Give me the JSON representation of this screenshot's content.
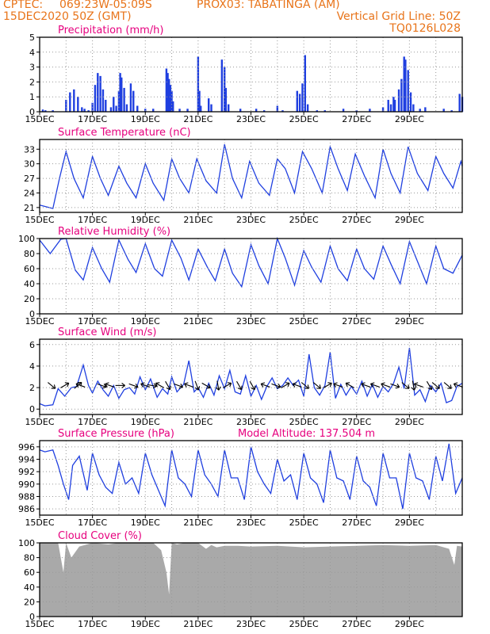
{
  "header": {
    "line1_left": "CPTEC:",
    "coords": "069:23W-05:09S",
    "station": "PROX03: TABATINGA (AM)",
    "datetime": "15DEC2020 50Z (GMT)",
    "grid_note": "Vertical Grid Line: 50Z",
    "run_id": "TQ0126L028"
  },
  "colors": {
    "header": "#e8741a",
    "title": "#e6007e",
    "line": "#1f3fe0",
    "bar": "#1f3fe0",
    "cloud": "#a9a9a9",
    "arrow": "#000000"
  },
  "date_ticks": [
    "15DEC",
    "17DEC",
    "19DEC",
    "21DEC",
    "23DEC",
    "25DEC",
    "27DEC",
    "29DEC"
  ],
  "chart_data": [
    {
      "id": "precipitation",
      "type": "bar",
      "title": "Precipitation (mm/h)",
      "ylim": [
        0,
        5
      ],
      "yticks": [
        0,
        1,
        2,
        3,
        4,
        5
      ],
      "x_days": [
        0,
        16
      ],
      "values": [
        [
          0.12,
          0.15
        ],
        [
          0.22,
          0.1
        ],
        [
          0.5,
          0.1
        ],
        [
          1.0,
          0.8
        ],
        [
          1.15,
          1.3
        ],
        [
          1.3,
          1.5
        ],
        [
          1.45,
          1.0
        ],
        [
          1.6,
          0.3
        ],
        [
          1.7,
          0.2
        ],
        [
          1.85,
          0.1
        ],
        [
          2.0,
          0.6
        ],
        [
          2.1,
          1.8
        ],
        [
          2.2,
          2.6
        ],
        [
          2.3,
          2.4
        ],
        [
          2.4,
          1.5
        ],
        [
          2.5,
          0.8
        ],
        [
          2.7,
          0.3
        ],
        [
          2.8,
          1.0
        ],
        [
          2.9,
          0.4
        ],
        [
          3.0,
          1.4
        ],
        [
          3.05,
          2.6
        ],
        [
          3.1,
          2.3
        ],
        [
          3.2,
          1.6
        ],
        [
          3.3,
          0.5
        ],
        [
          3.45,
          1.9
        ],
        [
          3.55,
          1.4
        ],
        [
          3.7,
          0.4
        ],
        [
          4.0,
          0.2
        ],
        [
          4.3,
          0.2
        ],
        [
          4.8,
          2.9
        ],
        [
          4.85,
          2.6
        ],
        [
          4.9,
          2.2
        ],
        [
          4.95,
          1.8
        ],
        [
          5.0,
          1.4
        ],
        [
          5.05,
          0.7
        ],
        [
          5.3,
          0.2
        ],
        [
          5.6,
          0.2
        ],
        [
          6.0,
          3.7
        ],
        [
          6.05,
          1.4
        ],
        [
          6.1,
          0.4
        ],
        [
          6.4,
          0.9
        ],
        [
          6.5,
          0.5
        ],
        [
          6.9,
          3.5
        ],
        [
          7.0,
          3.0
        ],
        [
          7.05,
          1.6
        ],
        [
          7.15,
          0.5
        ],
        [
          7.6,
          0.2
        ],
        [
          8.2,
          0.2
        ],
        [
          8.5,
          0.1
        ],
        [
          9.0,
          0.4
        ],
        [
          9.2,
          0.1
        ],
        [
          9.75,
          1.4
        ],
        [
          9.85,
          1.2
        ],
        [
          9.95,
          1.9
        ],
        [
          10.05,
          3.8
        ],
        [
          10.15,
          0.5
        ],
        [
          10.5,
          0.1
        ],
        [
          10.8,
          0.1
        ],
        [
          11.5,
          0.2
        ],
        [
          12.0,
          0.1
        ],
        [
          12.5,
          0.2
        ],
        [
          13.0,
          0.3
        ],
        [
          13.2,
          0.8
        ],
        [
          13.3,
          0.5
        ],
        [
          13.4,
          1.0
        ],
        [
          13.45,
          0.8
        ],
        [
          13.6,
          1.5
        ],
        [
          13.7,
          2.2
        ],
        [
          13.8,
          3.7
        ],
        [
          13.85,
          3.5
        ],
        [
          13.95,
          2.8
        ],
        [
          14.05,
          1.3
        ],
        [
          14.15,
          0.5
        ],
        [
          14.4,
          0.2
        ],
        [
          14.6,
          0.3
        ],
        [
          15.3,
          0.2
        ],
        [
          15.6,
          0.1
        ],
        [
          15.9,
          1.2
        ],
        [
          16.0,
          1.0
        ]
      ]
    },
    {
      "id": "temperature",
      "type": "line",
      "title": "Surface Temperature (nC)",
      "ylim": [
        20,
        35
      ],
      "yticks": [
        21,
        24,
        27,
        30,
        33
      ],
      "x": [
        0,
        0.5,
        0.75,
        1.0,
        1.3,
        1.65,
        2.0,
        2.3,
        2.6,
        3.0,
        3.3,
        3.65,
        4.0,
        4.3,
        4.7,
        5.0,
        5.3,
        5.65,
        5.95,
        6.3,
        6.7,
        7.0,
        7.3,
        7.65,
        7.95,
        8.3,
        8.7,
        9.0,
        9.3,
        9.65,
        9.95,
        10.3,
        10.7,
        11.0,
        11.3,
        11.65,
        11.95,
        12.3,
        12.7,
        13.0,
        13.3,
        13.65,
        13.95,
        14.3,
        14.7,
        15.0,
        15.3,
        15.65,
        15.95,
        16.0
      ],
      "y": [
        21.5,
        20.8,
        27,
        32.5,
        27,
        23,
        31.5,
        27,
        23.5,
        29.5,
        26,
        23,
        30,
        26,
        22.5,
        31,
        27,
        24,
        31,
        26.5,
        24,
        34,
        27,
        23,
        30.5,
        26,
        23.5,
        31,
        29,
        24,
        32.5,
        29,
        24,
        33.5,
        29,
        24.5,
        32,
        27.5,
        23,
        33,
        28,
        24,
        33.5,
        28,
        24.5,
        31.5,
        28,
        25,
        30.5,
        29.5
      ]
    },
    {
      "id": "humidity",
      "type": "line",
      "title": "Relative Humidity (%)",
      "ylim": [
        0,
        100
      ],
      "yticks": [
        0,
        20,
        40,
        60,
        80,
        100
      ],
      "x": [
        0,
        0.4,
        0.8,
        1.0,
        1.35,
        1.65,
        2.0,
        2.35,
        2.65,
        3.0,
        3.35,
        3.65,
        4.0,
        4.35,
        4.65,
        5.0,
        5.35,
        5.65,
        6.0,
        6.35,
        6.65,
        7.0,
        7.3,
        7.65,
        8.0,
        8.3,
        8.65,
        9.0,
        9.3,
        9.65,
        10.0,
        10.3,
        10.65,
        11.0,
        11.3,
        11.65,
        12.0,
        12.3,
        12.65,
        13.0,
        13.3,
        13.65,
        14.0,
        14.3,
        14.65,
        15.0,
        15.3,
        15.65,
        16.0
      ],
      "y": [
        98,
        80,
        99,
        100,
        58,
        45,
        88,
        60,
        42,
        98,
        72,
        55,
        93,
        60,
        50,
        98,
        74,
        45,
        86,
        62,
        44,
        86,
        54,
        36,
        92,
        64,
        40,
        100,
        74,
        38,
        84,
        62,
        42,
        90,
        60,
        44,
        86,
        60,
        46,
        90,
        66,
        40,
        96,
        70,
        40,
        90,
        60,
        54,
        78
      ]
    },
    {
      "id": "wind",
      "type": "line",
      "title": "Surface Wind (m/s)",
      "ylim": [
        -0.5,
        6.5
      ],
      "yticks": [
        0,
        2,
        4,
        6
      ],
      "x": [
        0,
        0.2,
        0.5,
        0.7,
        0.95,
        1.2,
        1.4,
        1.65,
        1.85,
        2.0,
        2.2,
        2.4,
        2.6,
        2.8,
        3.0,
        3.2,
        3.4,
        3.6,
        3.8,
        4.0,
        4.2,
        4.45,
        4.65,
        4.85,
        5.0,
        5.2,
        5.45,
        5.65,
        5.85,
        6.0,
        6.2,
        6.4,
        6.6,
        6.8,
        7.0,
        7.2,
        7.4,
        7.6,
        7.8,
        8.0,
        8.2,
        8.4,
        8.6,
        8.8,
        9.0,
        9.2,
        9.4,
        9.6,
        9.8,
        10.0,
        10.2,
        10.4,
        10.6,
        10.8,
        11.0,
        11.2,
        11.4,
        11.6,
        11.8,
        12.0,
        12.2,
        12.4,
        12.6,
        12.8,
        13.0,
        13.2,
        13.4,
        13.6,
        13.8,
        14.0,
        14.2,
        14.4,
        14.6,
        14.8,
        15.0,
        15.2,
        15.4,
        15.6,
        15.8,
        16.0
      ],
      "y": [
        0.5,
        0.3,
        0.4,
        1.9,
        1.2,
        2.0,
        2.1,
        4.1,
        2.2,
        1.5,
        2.6,
        1.8,
        1.2,
        2.2,
        1.0,
        1.8,
        2.0,
        1.4,
        3.0,
        1.8,
        2.8,
        1.1,
        1.9,
        1.4,
        3.0,
        1.6,
        2.3,
        4.5,
        1.6,
        2.0,
        1.1,
        2.4,
        1.3,
        3.1,
        1.9,
        3.6,
        1.6,
        1.4,
        3.1,
        1.2,
        2.2,
        0.9,
        2.1,
        2.9,
        1.9,
        2.2,
        2.9,
        2.2,
        2.7,
        1.2,
        5.1,
        2.0,
        1.3,
        2.2,
        5.3,
        1.0,
        2.3,
        1.3,
        2.1,
        1.4,
        2.6,
        1.2,
        2.3,
        1.1,
        2.1,
        1.6,
        2.4,
        3.9,
        1.9,
        5.7,
        1.3,
        1.8,
        0.7,
        2.2,
        1.6,
        2.4,
        0.6,
        0.8,
        2.1,
        2.4
      ]
    },
    {
      "id": "pressure",
      "type": "line",
      "title": "Surface Pressure (hPa)",
      "subtitle": "Model Altitude: 137.504 m",
      "ylim": [
        985,
        997
      ],
      "yticks": [
        986,
        988,
        990,
        992,
        994,
        996
      ],
      "x": [
        0,
        0.2,
        0.5,
        0.7,
        0.9,
        1.1,
        1.25,
        1.5,
        1.8,
        2.0,
        2.25,
        2.5,
        2.75,
        3.0,
        3.25,
        3.5,
        3.75,
        4.0,
        4.25,
        4.5,
        4.75,
        5.0,
        5.25,
        5.5,
        5.75,
        6.0,
        6.25,
        6.5,
        6.75,
        7.0,
        7.25,
        7.5,
        7.75,
        8.0,
        8.25,
        8.5,
        8.75,
        9.0,
        9.25,
        9.5,
        9.75,
        10.0,
        10.25,
        10.5,
        10.75,
        11.0,
        11.25,
        11.5,
        11.75,
        12.0,
        12.25,
        12.5,
        12.75,
        13.0,
        13.25,
        13.5,
        13.75,
        14.0,
        14.25,
        14.5,
        14.75,
        15.0,
        15.25,
        15.5,
        15.75,
        16.0
      ],
      "y": [
        995.5,
        995.2,
        995.5,
        993,
        990,
        987.5,
        993,
        994.5,
        989,
        995,
        991.5,
        989.5,
        988.5,
        993.5,
        990,
        991,
        988.5,
        995,
        991.5,
        989,
        986.5,
        995.5,
        991,
        990,
        988,
        995.5,
        991.5,
        990,
        988,
        995.5,
        991,
        991,
        987.5,
        996,
        992,
        990,
        988.5,
        994,
        990.5,
        991.5,
        987.5,
        995,
        991,
        990,
        987,
        995.5,
        991,
        990.5,
        987.5,
        994.5,
        990.5,
        989.5,
        986.5,
        995,
        991,
        991,
        986,
        995,
        991,
        990.5,
        987.5,
        994.5,
        990.5,
        996.5,
        988.5,
        991
      ]
    },
    {
      "id": "cloud",
      "type": "area",
      "title": "Cloud Cover (%)",
      "ylim": [
        0,
        100
      ],
      "yticks": [
        0,
        20,
        40,
        60,
        80,
        100
      ],
      "x": [
        0,
        0.3,
        0.7,
        0.9,
        1.0,
        1.2,
        1.5,
        2.0,
        2.6,
        3.0,
        3.5,
        4.0,
        4.3,
        4.6,
        4.8,
        4.9,
        5.0,
        5.2,
        5.5,
        6.0,
        6.3,
        6.5,
        6.7,
        7.0,
        7.5,
        8.0,
        9.0,
        10.0,
        11.0,
        12.0,
        13.0,
        14.0,
        15.0,
        15.5,
        15.7,
        15.8,
        16.0
      ],
      "y": [
        100,
        100,
        100,
        60,
        100,
        80,
        95,
        100,
        98,
        100,
        100,
        100,
        100,
        90,
        60,
        30,
        100,
        98,
        100,
        100,
        92,
        97,
        94,
        96,
        96,
        95,
        96,
        94,
        95,
        96,
        97,
        96,
        97,
        92,
        70,
        96,
        95
      ]
    }
  ],
  "wind_arrows": [
    {
      "x": 0.45,
      "a": 40
    },
    {
      "x": 0.95,
      "a": -30
    },
    {
      "x": 1.45,
      "a": -40
    },
    {
      "x": 1.55,
      "a": 200
    },
    {
      "x": 2.35,
      "a": 20
    },
    {
      "x": 2.65,
      "a": 200
    },
    {
      "x": 3.05,
      "a": 0
    },
    {
      "x": 3.55,
      "a": 20
    },
    {
      "x": 4.0,
      "a": 200
    },
    {
      "x": 4.25,
      "a": 10
    },
    {
      "x": 4.55,
      "a": 210
    },
    {
      "x": 4.85,
      "a": 60
    },
    {
      "x": 5.25,
      "a": 20
    },
    {
      "x": 5.65,
      "a": 200
    },
    {
      "x": 5.95,
      "a": 70
    },
    {
      "x": 6.3,
      "a": 30
    },
    {
      "x": 6.75,
      "a": 80
    },
    {
      "x": 7.1,
      "a": -30
    },
    {
      "x": 7.55,
      "a": 60
    },
    {
      "x": 8.05,
      "a": 60
    },
    {
      "x": 8.55,
      "a": 200
    },
    {
      "x": 8.95,
      "a": 20
    },
    {
      "x": 9.3,
      "a": -30
    },
    {
      "x": 9.75,
      "a": 200
    },
    {
      "x": 10.05,
      "a": 40
    },
    {
      "x": 10.5,
      "a": 40
    },
    {
      "x": 10.9,
      "a": -30
    },
    {
      "x": 11.3,
      "a": 200
    },
    {
      "x": 11.75,
      "a": 210
    },
    {
      "x": 12.35,
      "a": 200
    },
    {
      "x": 12.7,
      "a": 200
    },
    {
      "x": 13.1,
      "a": 200
    },
    {
      "x": 13.45,
      "a": 20
    },
    {
      "x": 13.85,
      "a": 40
    },
    {
      "x": 14.15,
      "a": 80
    },
    {
      "x": 14.35,
      "a": 200
    },
    {
      "x": 14.75,
      "a": 60
    },
    {
      "x": 15.0,
      "a": 40
    },
    {
      "x": 15.45,
      "a": 40
    },
    {
      "x": 15.85,
      "a": 200
    }
  ]
}
